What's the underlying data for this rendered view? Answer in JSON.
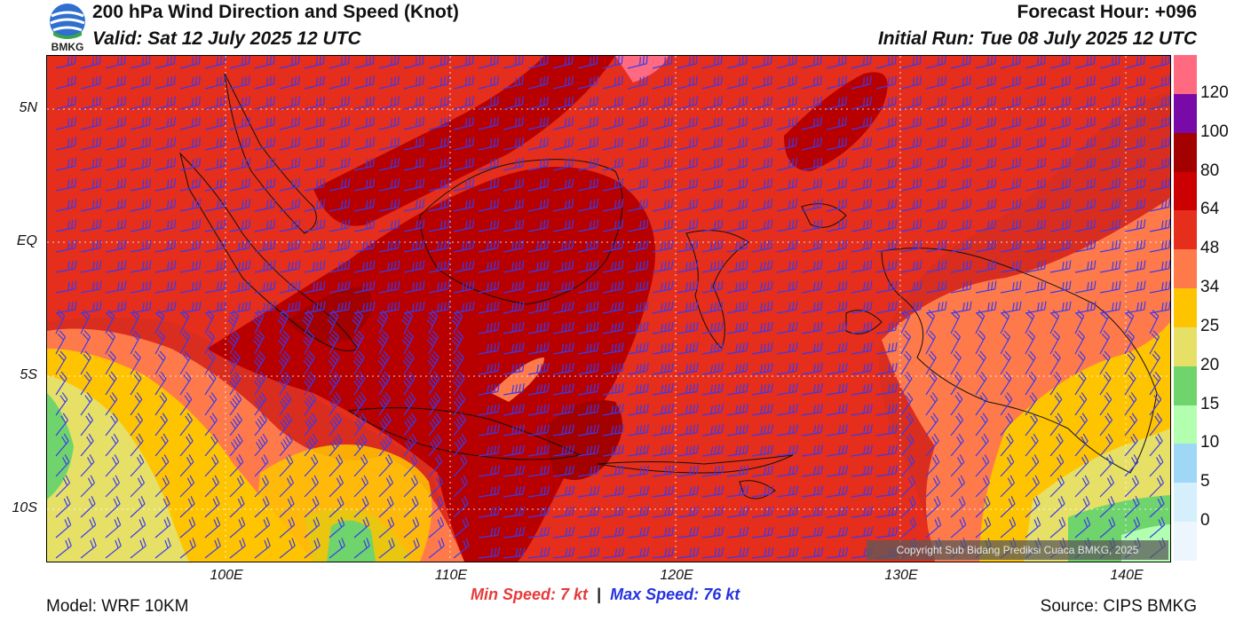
{
  "header": {
    "title": "200 hPa Wind Direction and Speed (Knot)",
    "valid": "Valid: Sat 12 July 2025 12 UTC",
    "forecast_hour": "Forecast Hour: +096",
    "initial_run": "Initial Run: Tue 08 July 2025 12 UTC",
    "logo_text": "BMKG"
  },
  "map": {
    "lat_labels": [
      "5N",
      "EQ",
      "5S",
      "10S"
    ],
    "lon_labels": [
      "100E",
      "110E",
      "120E",
      "130E",
      "140E"
    ],
    "copyright": "Copyright Sub Bidang Prediksi Cuaca BMKG, 2025",
    "barb_color": "#3a3af0"
  },
  "colorbar": {
    "labels": [
      "120",
      "100",
      "80",
      "64",
      "48",
      "34",
      "25",
      "20",
      "15",
      "10",
      "5",
      "0"
    ],
    "colors": [
      "#ff6a80",
      "#7a0aa8",
      "#a30000",
      "#cc0000",
      "#e52e1c",
      "#ff7a4a",
      "#ffc400",
      "#e6e067",
      "#6fd46b",
      "#b3ffb0",
      "#9fd8f6",
      "#d6effc",
      "#eef6fd"
    ]
  },
  "footer": {
    "model": "Model: WRF 10KM",
    "min_label": "Min Speed:",
    "min_value": "7 kt",
    "separator": "|",
    "max_label": "Max Speed:",
    "max_value": "76 kt",
    "source": "Source: CIPS BMKG"
  }
}
